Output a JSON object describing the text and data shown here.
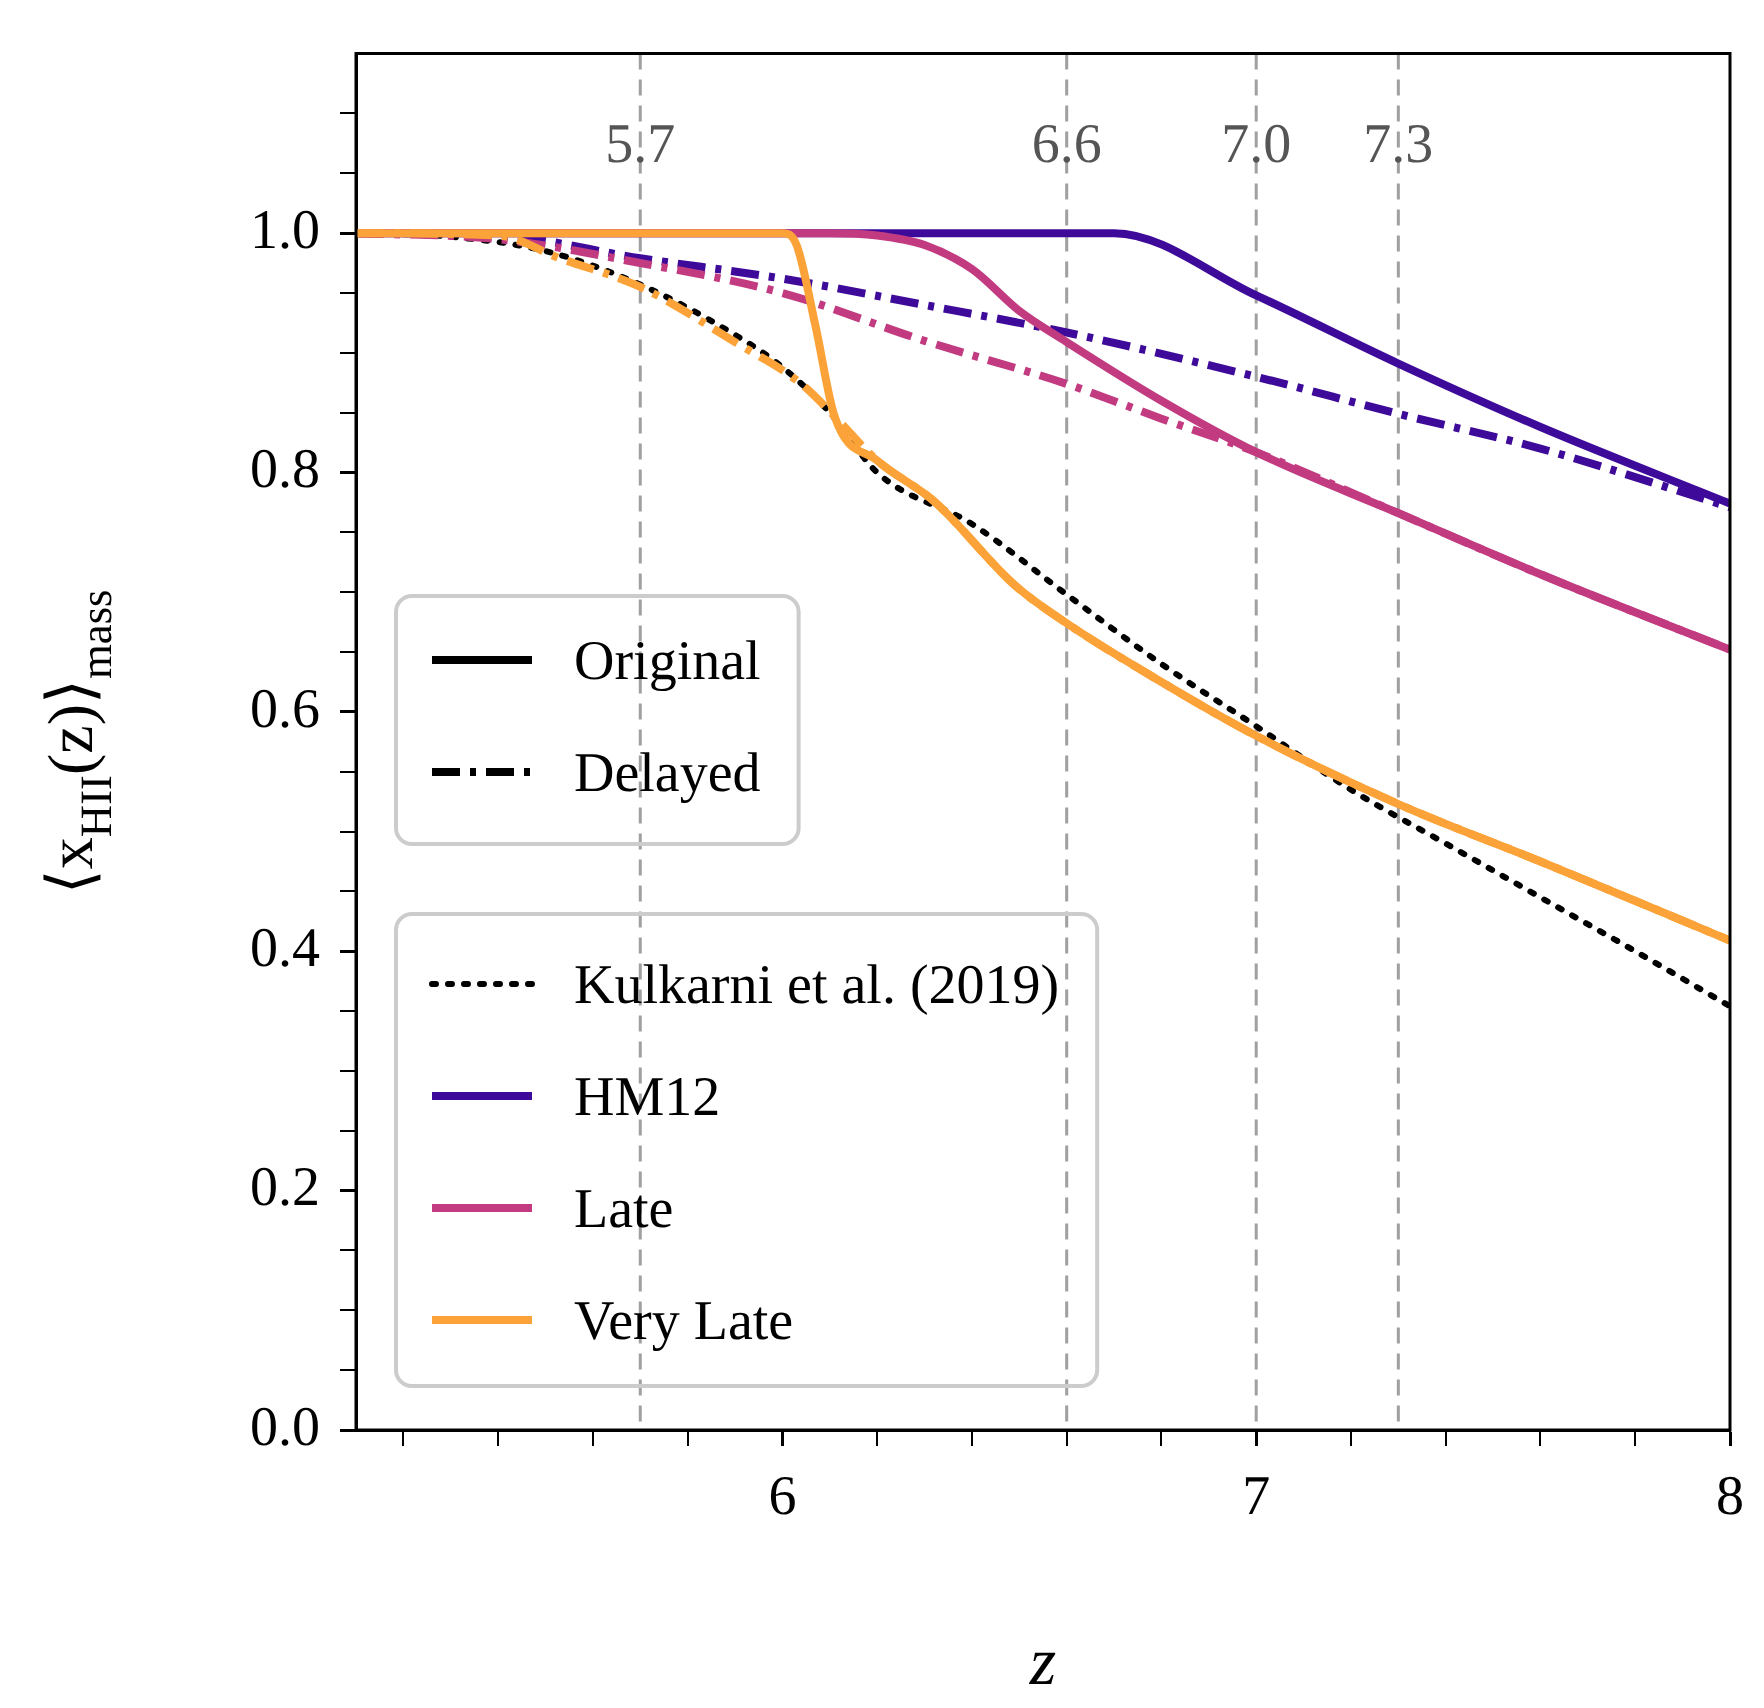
{
  "chart_data": {
    "type": "line",
    "xlabel": "z",
    "ylabel": "⟨x$_{HII}$(z)⟩$_{mass}$",
    "xlim": [
      5.1,
      8.0
    ],
    "ylim": [
      0,
      1.15
    ],
    "xticks": [
      {
        "value": 5.2,
        "label": null
      },
      {
        "value": 5.4,
        "label": null
      },
      {
        "value": 5.6,
        "label": null
      },
      {
        "value": 5.8,
        "label": null
      },
      6,
      {
        "value": 6.2,
        "label": null
      },
      {
        "value": 6.4,
        "label": null
      },
      {
        "value": 6.6,
        "label": null
      },
      {
        "value": 6.8,
        "label": null
      },
      7,
      {
        "value": 7.2,
        "label": null
      },
      {
        "value": 7.4,
        "label": null
      },
      {
        "value": 7.6,
        "label": null
      },
      {
        "value": 7.8,
        "label": null
      },
      8
    ],
    "yticks": [
      {
        "value": 0,
        "label": "0.0"
      },
      {
        "value": 0.05,
        "label": null
      },
      {
        "value": 0.1,
        "label": null
      },
      {
        "value": 0.15,
        "label": null
      },
      0.2,
      {
        "value": 0.25,
        "label": null
      },
      {
        "value": 0.3,
        "label": null
      },
      {
        "value": 0.35,
        "label": null
      },
      0.4,
      {
        "value": 0.45,
        "label": null
      },
      {
        "value": 0.5,
        "label": null
      },
      {
        "value": 0.55,
        "label": null
      },
      0.6,
      {
        "value": 0.65,
        "label": null
      },
      {
        "value": 0.7,
        "label": null
      },
      {
        "value": 0.75,
        "label": null
      },
      0.8,
      {
        "value": 0.85,
        "label": null
      },
      {
        "value": 0.9,
        "label": null
      },
      {
        "value": 0.95,
        "label": null
      },
      {
        "value": 1.0,
        "label": "1.0"
      },
      {
        "value": 1.05,
        "label": null
      },
      {
        "value": 1.1,
        "label": null
      }
    ],
    "grid": false,
    "legend": "bottom left",
    "marker": "none",
    "annotations": [
      "Original",
      "Delayed"
    ],
    "ref_lines": [
      {
        "axis": "x",
        "value": 5.7,
        "label": "5.7",
        "color": "#a0a0a0",
        "line_style": "dashed"
      },
      {
        "axis": "x",
        "value": 6.6,
        "label": "6.6",
        "color": "#a0a0a0",
        "line_style": "dashed"
      },
      {
        "axis": "x",
        "value": 7.0,
        "label": "7.0",
        "color": "#a0a0a0",
        "line_style": "dashed"
      },
      {
        "axis": "x",
        "value": 7.3,
        "label": "7.3",
        "color": "#a0a0a0",
        "line_style": "dashed"
      }
    ],
    "series": [
      {
        "name": "Kulkarni et al. (2019)",
        "color": "#000000",
        "line_style": "dotted",
        "x": [
          5.1,
          5.3,
          5.5,
          5.7,
          5.9,
          6.0,
          6.1,
          6.2,
          6.4,
          6.6,
          6.8,
          7.0,
          7.2,
          7.4,
          7.6,
          7.8,
          8.0
        ],
        "values": [
          1.0,
          0.997,
          0.985,
          0.957,
          0.915,
          0.888,
          0.85,
          0.8,
          0.757,
          0.698,
          0.64,
          0.588,
          0.535,
          0.49,
          0.445,
          0.4,
          0.354
        ]
      },
      {
        "name": "HM12",
        "color": "#3e0a9a",
        "line_style": "solid",
        "x": [
          5.1,
          6.7,
          7.0,
          7.3,
          7.6,
          8.0
        ],
        "values": [
          1.0,
          1.0,
          0.948,
          0.891,
          0.838,
          0.774
        ]
      },
      {
        "color": "#3e0a9a",
        "line_style": "dashdot",
        "x": [
          5.1,
          5.4,
          5.7,
          6.0,
          6.3,
          6.6,
          7.0,
          7.3,
          7.6,
          8.0
        ],
        "values": [
          1.0,
          0.998,
          0.979,
          0.962,
          0.94,
          0.917,
          0.88,
          0.849,
          0.82,
          0.771
        ]
      },
      {
        "name": "Late",
        "color": "#c23b81",
        "line_style": "solid",
        "x": [
          5.1,
          6.0,
          6.1,
          6.2,
          6.3,
          6.4,
          6.5,
          6.6,
          6.8,
          7.0,
          7.3,
          7.6,
          8.0
        ],
        "values": [
          1.0,
          1.0,
          1.0,
          0.998,
          0.99,
          0.97,
          0.935,
          0.909,
          0.86,
          0.817,
          0.766,
          0.715,
          0.652
        ]
      },
      {
        "color": "#c23b81",
        "line_style": "dashdot",
        "x": [
          5.1,
          5.4,
          5.7,
          6.0,
          6.3,
          6.6,
          6.8,
          7.0,
          7.3,
          7.6,
          8.0
        ],
        "values": [
          1.0,
          0.995,
          0.975,
          0.95,
          0.91,
          0.874,
          0.845,
          0.817,
          0.766,
          0.715,
          0.652
        ]
      },
      {
        "name": "Very Late",
        "color": "#fba238",
        "line_style": "solid",
        "x": [
          5.1,
          6.0,
          6.03,
          6.07,
          6.11,
          6.2,
          6.32,
          6.49,
          6.6,
          6.8,
          7.0,
          7.3,
          7.6,
          8.0
        ],
        "values": [
          1.0,
          1.0,
          0.99,
          0.922,
          0.847,
          0.81,
          0.776,
          0.706,
          0.674,
          0.625,
          0.58,
          0.523,
          0.475,
          0.409
        ]
      },
      {
        "color": "#fba238",
        "line_style": "dashdot",
        "x": [
          5.1,
          5.4,
          5.53,
          5.7,
          5.9,
          6.04,
          6.11,
          6.2,
          6.32,
          6.49,
          6.6,
          6.8,
          7.0,
          7.3,
          7.6,
          8.0
        ],
        "values": [
          1.0,
          0.998,
          0.979,
          0.955,
          0.909,
          0.874,
          0.847,
          0.81,
          0.776,
          0.706,
          0.674,
          0.625,
          0.58,
          0.523,
          0.475,
          0.409
        ]
      }
    ]
  }
}
